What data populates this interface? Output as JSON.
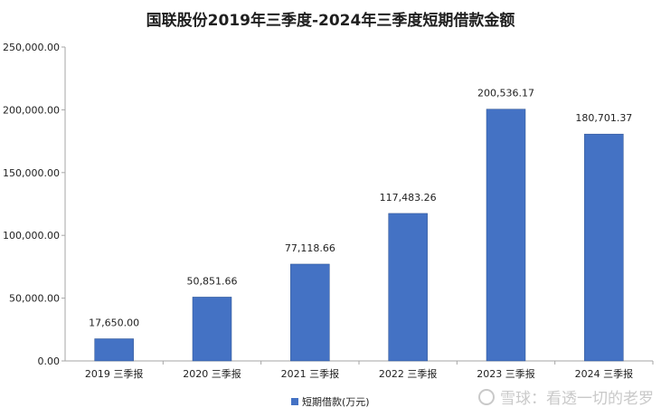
{
  "chart_data": {
    "type": "bar",
    "title": "国联股份2019年三季度-2024年三季度短期借款金额",
    "categories": [
      "2019 三季报",
      "2020 三季报",
      "2021 三季报",
      "2022 三季报",
      "2023 三季报",
      "2024 三季报"
    ],
    "series": [
      {
        "name": "短期借款(万元)",
        "values": [
          17650.0,
          50851.66,
          77118.66,
          117483.26,
          200536.17,
          180701.37
        ],
        "labels": [
          "17,650.00",
          "50,851.66",
          "77,118.66",
          "117,483.26",
          "200,536.17",
          "180,701.37"
        ],
        "color": "#4472C4"
      }
    ],
    "ylim": [
      0,
      250000
    ],
    "yticks": [
      0,
      50000,
      100000,
      150000,
      200000,
      250000
    ],
    "ytick_labels": [
      "0.00",
      "50,000.00",
      "100,000.00",
      "150,000.00",
      "200,000.00",
      "250,000.00"
    ],
    "grid": false,
    "legend_position": "bottom"
  },
  "watermark": "雪球：看透一切的老罗"
}
